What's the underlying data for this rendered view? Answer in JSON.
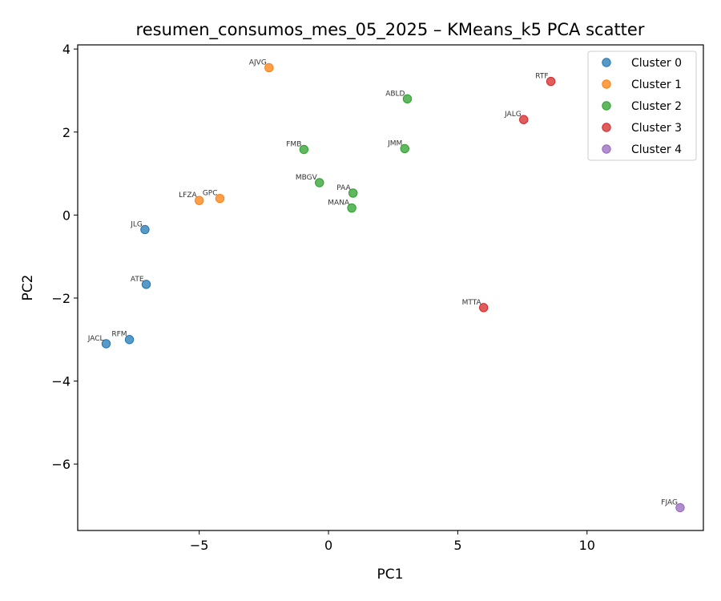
{
  "chart_data": {
    "type": "scatter",
    "title": "resumen_consumos_mes_05_2025 – KMeans_k5 PCA scatter",
    "xlabel": "PC1",
    "ylabel": "PC2",
    "xlim": [
      -9.7,
      14.5
    ],
    "ylim": [
      -7.6,
      4.1
    ],
    "xticks": [
      -5,
      0,
      5,
      10
    ],
    "yticks": [
      4,
      2,
      0,
      -2,
      -4,
      -6
    ],
    "x_tick_labels": [
      "−5",
      "0",
      "5",
      "10"
    ],
    "y_tick_labels": [
      "4",
      "2",
      "0",
      "−2",
      "−4",
      "−6"
    ],
    "grid": false,
    "legend_position": "top-right",
    "series": [
      {
        "name": "Cluster 0",
        "color": "#1f77b4",
        "points": [
          {
            "label": "JLG",
            "x": -7.1,
            "y": -0.35
          },
          {
            "label": "ATE",
            "x": -7.05,
            "y": -1.67
          },
          {
            "label": "RFM",
            "x": -7.7,
            "y": -3.0
          },
          {
            "label": "JACL",
            "x": -8.6,
            "y": -3.1
          }
        ]
      },
      {
        "name": "Cluster 1",
        "color": "#ff7f0e",
        "points": [
          {
            "label": "AJVG",
            "x": -2.3,
            "y": 3.55
          },
          {
            "label": "LFZA",
            "x": -5.0,
            "y": 0.35
          },
          {
            "label": "GPC",
            "x": -4.2,
            "y": 0.4
          }
        ]
      },
      {
        "name": "Cluster 2",
        "color": "#2ca02c",
        "points": [
          {
            "label": "ABLD",
            "x": 3.05,
            "y": 2.8
          },
          {
            "label": "FMB",
            "x": -0.95,
            "y": 1.58
          },
          {
            "label": "JMM",
            "x": 2.95,
            "y": 1.6
          },
          {
            "label": "MBGV",
            "x": -0.35,
            "y": 0.78
          },
          {
            "label": "PAA",
            "x": 0.95,
            "y": 0.53
          },
          {
            "label": "MANA",
            "x": 0.9,
            "y": 0.17
          }
        ]
      },
      {
        "name": "Cluster 3",
        "color": "#d62728",
        "points": [
          {
            "label": "RTF",
            "x": 8.6,
            "y": 3.22
          },
          {
            "label": "JALG",
            "x": 7.55,
            "y": 2.3
          },
          {
            "label": "MTTA",
            "x": 6.0,
            "y": -2.23
          }
        ]
      },
      {
        "name": "Cluster 4",
        "color": "#9467bd",
        "points": [
          {
            "label": "FJAG",
            "x": 13.6,
            "y": -7.05
          }
        ]
      }
    ]
  }
}
